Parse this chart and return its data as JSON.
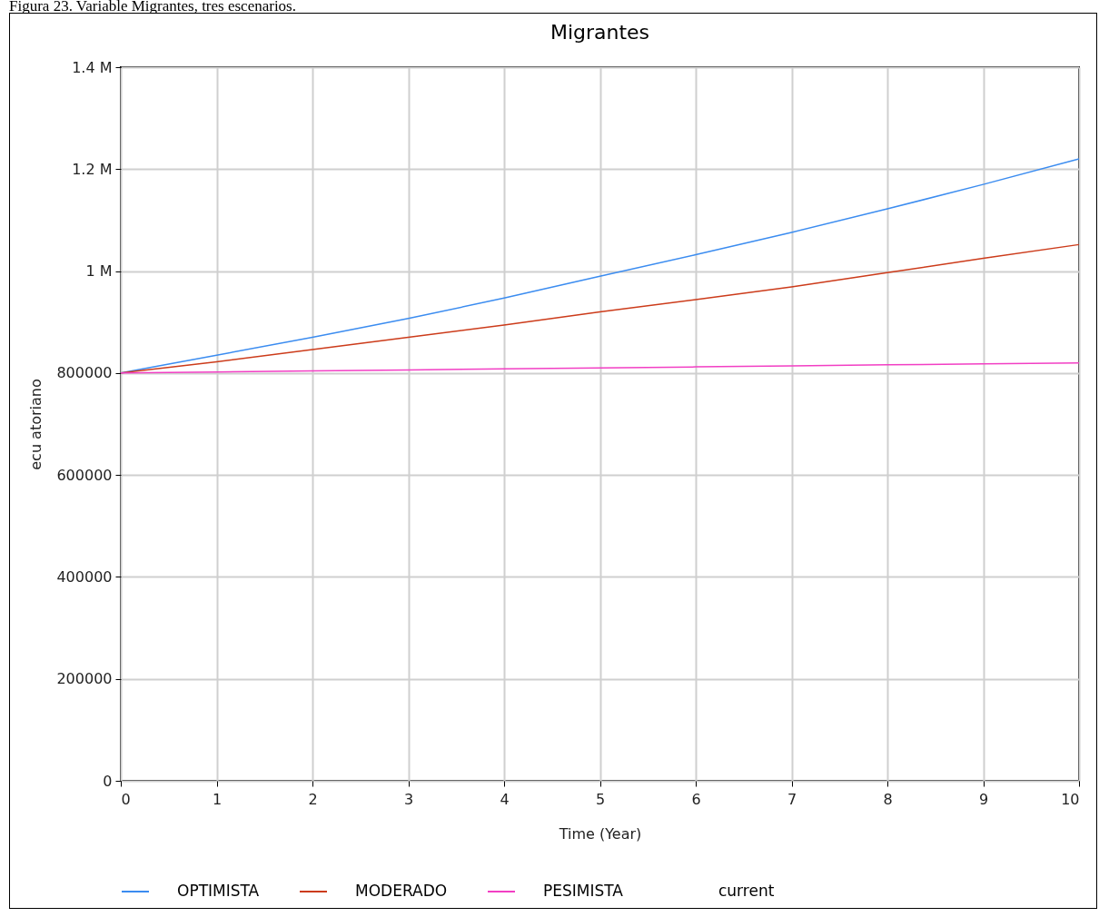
{
  "chart_data": {
    "type": "line",
    "title": "Migrantes",
    "xlabel": "Time (Year)",
    "ylabel": "ecu atoriano",
    "annotations": [
      "Figura 23. Variable Migrantes, tres escenarios."
    ],
    "x": [
      0,
      1,
      2,
      3,
      4,
      5,
      6,
      7,
      8,
      9,
      10
    ],
    "series": [
      {
        "name": "OPTIMISTA",
        "color": "#3b8cf0",
        "values": [
          800000,
          835000,
          870000,
          907000,
          947000,
          990000,
          1032000,
          1076000,
          1122000,
          1170000,
          1220000
        ]
      },
      {
        "name": "MODERADO",
        "color": "#cc3b1a",
        "values": [
          800000,
          822000,
          846000,
          870000,
          894000,
          920000,
          944000,
          969000,
          997000,
          1025000,
          1052000
        ]
      },
      {
        "name": "PESIMISTA",
        "color": "#f23fc4",
        "values": [
          800000,
          802000,
          804000,
          806000,
          808000,
          810000,
          812000,
          814000,
          816000,
          818000,
          820000
        ]
      },
      {
        "name": "current",
        "values": [
          null,
          null,
          null,
          null,
          null,
          null,
          null,
          null,
          null,
          null,
          null
        ]
      }
    ],
    "xlim": [
      0,
      10
    ],
    "xticks": [
      0,
      1,
      2,
      3,
      4,
      5,
      6,
      7,
      8,
      9,
      10
    ],
    "ylim": [
      0,
      1400000
    ],
    "yticks": [
      0,
      200000,
      400000,
      600000,
      800000,
      {
        "value": 1000000,
        "label": "1 M"
      },
      {
        "value": 1200000,
        "label": "1.2 M"
      },
      {
        "value": 1400000,
        "label": "1.4 M"
      }
    ],
    "grid": true,
    "legend": "bottom",
    "marker": "none",
    "line_style": "solid"
  }
}
